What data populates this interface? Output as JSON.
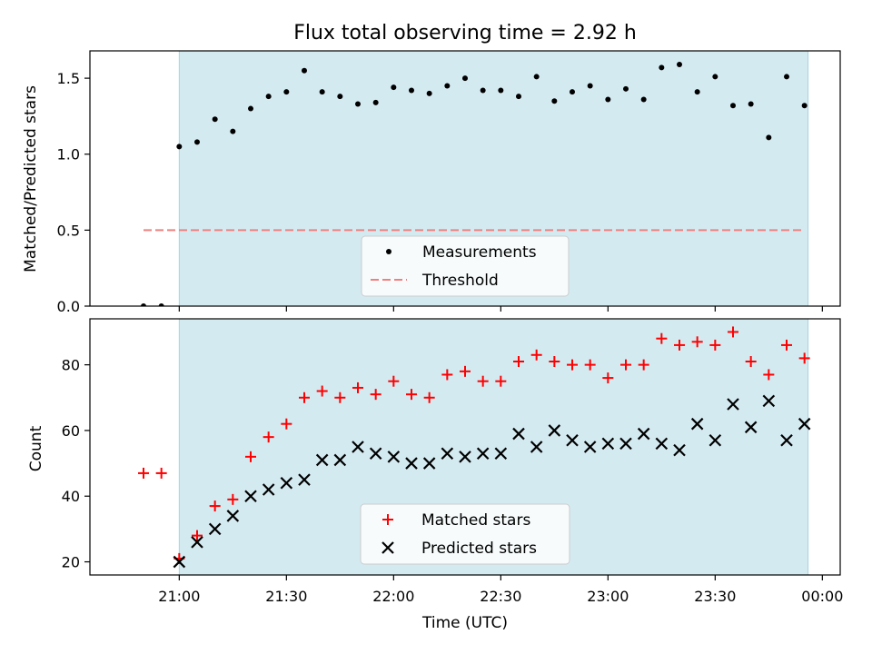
{
  "chart_data": [
    {
      "type": "scatter",
      "title": "Flux total observing time = 2.92 h",
      "xlabel": "",
      "ylabel": "Matched/Predicted stars",
      "ylim": [
        0,
        1.68
      ],
      "yticks": [
        "0.0",
        "0.5",
        "1.0",
        "1.5"
      ],
      "ytick_values": [
        0,
        0.5,
        1.0,
        1.5
      ],
      "shaded_interval": [
        "21:00",
        "23:56"
      ],
      "shade_color": "#d4eaf1",
      "legend": {
        "placement": "lower center",
        "entries": [
          "Measurements",
          "Threshold"
        ]
      },
      "series": [
        {
          "name": "Measurements",
          "marker": "dot",
          "color": "#000000",
          "x": [
            "20:50",
            "20:55",
            "21:00",
            "21:05",
            "21:10",
            "21:15",
            "21:20",
            "21:25",
            "21:30",
            "21:35",
            "21:40",
            "21:45",
            "21:50",
            "21:55",
            "22:00",
            "22:05",
            "22:10",
            "22:15",
            "22:20",
            "22:25",
            "22:30",
            "22:35",
            "22:40",
            "22:45",
            "22:50",
            "22:55",
            "23:00",
            "23:05",
            "23:10",
            "23:15",
            "23:20",
            "23:25",
            "23:30",
            "23:35",
            "23:40",
            "23:45",
            "23:50",
            "23:55"
          ],
          "values": [
            0.0,
            0.0,
            1.05,
            1.08,
            1.23,
            1.15,
            1.3,
            1.38,
            1.41,
            1.55,
            1.41,
            1.38,
            1.33,
            1.34,
            1.44,
            1.42,
            1.4,
            1.45,
            1.5,
            1.42,
            1.42,
            1.38,
            1.51,
            1.35,
            1.41,
            1.45,
            1.36,
            1.43,
            1.36,
            1.57,
            1.59,
            1.41,
            1.51,
            1.32,
            1.33,
            1.11,
            1.51,
            1.32
          ]
        },
        {
          "name": "Threshold",
          "style": "dashed",
          "color": "#f08080",
          "x": [
            "20:50",
            "23:55"
          ],
          "values": [
            0.5,
            0.5
          ]
        }
      ]
    },
    {
      "type": "scatter",
      "title": "",
      "xlabel": "Time (UTC)",
      "ylabel": "Count",
      "ylim": [
        16,
        94
      ],
      "yticks": [
        "20",
        "40",
        "60",
        "80"
      ],
      "ytick_values": [
        20,
        40,
        60,
        80
      ],
      "xlim": [
        "20:35",
        "00:05"
      ],
      "xticks": [
        "21:00",
        "21:30",
        "22:00",
        "22:30",
        "23:00",
        "23:30",
        "00:00"
      ],
      "shaded_interval": [
        "21:00",
        "23:56"
      ],
      "shade_color": "#d4eaf1",
      "legend": {
        "placement": "lower center",
        "entries": [
          "Matched stars",
          "Predicted stars"
        ]
      },
      "series": [
        {
          "name": "Matched stars",
          "marker": "plus",
          "color": "#ff0000",
          "x": [
            "20:50",
            "20:55",
            "21:00",
            "21:05",
            "21:10",
            "21:15",
            "21:20",
            "21:25",
            "21:30",
            "21:35",
            "21:40",
            "21:45",
            "21:50",
            "21:55",
            "22:00",
            "22:05",
            "22:10",
            "22:15",
            "22:20",
            "22:25",
            "22:30",
            "22:35",
            "22:40",
            "22:45",
            "22:50",
            "22:55",
            "23:00",
            "23:05",
            "23:10",
            "23:15",
            "23:20",
            "23:25",
            "23:30",
            "23:35",
            "23:40",
            "23:45",
            "23:50",
            "23:55"
          ],
          "values": [
            47,
            47,
            21,
            28,
            37,
            39,
            52,
            58,
            62,
            70,
            72,
            70,
            73,
            71,
            75,
            71,
            70,
            77,
            78,
            75,
            75,
            81,
            83,
            81,
            80,
            80,
            76,
            80,
            80,
            88,
            86,
            87,
            86,
            90,
            81,
            77,
            86,
            82
          ]
        },
        {
          "name": "Predicted stars",
          "marker": "x",
          "color": "#000000",
          "x": [
            "21:00",
            "21:05",
            "21:10",
            "21:15",
            "21:20",
            "21:25",
            "21:30",
            "21:35",
            "21:40",
            "21:45",
            "21:50",
            "21:55",
            "22:00",
            "22:05",
            "22:10",
            "22:15",
            "22:20",
            "22:25",
            "22:30",
            "22:35",
            "22:40",
            "22:45",
            "22:50",
            "22:55",
            "23:00",
            "23:05",
            "23:10",
            "23:15",
            "23:20",
            "23:25",
            "23:30",
            "23:35",
            "23:40",
            "23:45",
            "23:50",
            "23:55"
          ],
          "values": [
            20,
            26,
            30,
            34,
            40,
            42,
            44,
            45,
            51,
            51,
            55,
            53,
            52,
            50,
            50,
            53,
            52,
            53,
            53,
            59,
            55,
            60,
            57,
            55,
            56,
            56,
            59,
            56,
            54,
            62,
            57,
            68,
            61,
            69,
            57,
            62
          ]
        }
      ]
    }
  ]
}
